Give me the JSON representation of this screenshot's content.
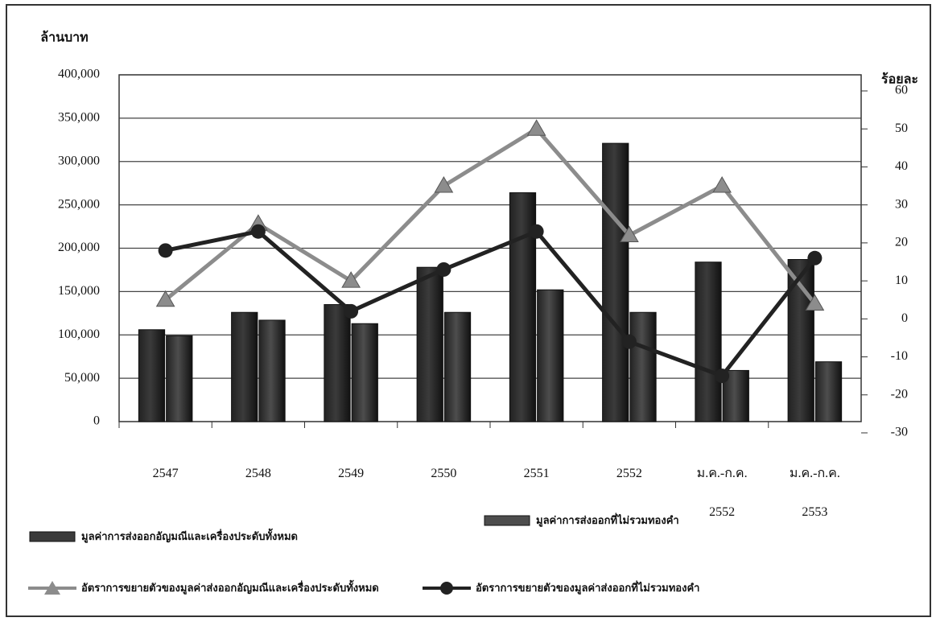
{
  "chart_data": {
    "type": "bar_line",
    "y_label": "ล้านบาท",
    "y2_label": "ร้อยละ",
    "categories": [
      "2547",
      "2548",
      "2549",
      "2550",
      "2551",
      "2552",
      "ม.ค.-ก.ค. 2552",
      "ม.ค.-ก.ค. 2553"
    ],
    "series": [
      {
        "name": "มูลค่าการส่งออกอัญมณีและเครื่องประดับทั้งหมด",
        "type": "bar",
        "color": "#3b3b3b",
        "values": [
          106000,
          126000,
          135000,
          178000,
          264000,
          321000,
          184000,
          187000
        ]
      },
      {
        "name": "มูลค่าการส่งออกที่ไม่รวมทองคำ",
        "type": "bar",
        "color": "#4d4d4d",
        "values": [
          99000,
          117000,
          113000,
          126000,
          152000,
          126000,
          59000,
          69000
        ]
      },
      {
        "name": "อัตราการขยายตัวของมูลค่าส่งออกอัญมณีและเครื่องประดับทั้งหมด",
        "type": "line",
        "marker": "triangle",
        "axis": "y2",
        "color": "#8c8c8c",
        "values": [
          5,
          25,
          10,
          35,
          50,
          22,
          35,
          4
        ]
      },
      {
        "name": "อัตราการขยายตัวของมูลค่าส่งออกที่ไม่รวมทองคำ",
        "type": "line",
        "marker": "circle",
        "axis": "y2",
        "color": "#222222",
        "values": [
          18,
          23,
          2,
          13,
          23,
          -6,
          -15,
          16
        ]
      }
    ],
    "ylim": [
      0,
      400000
    ],
    "yticks": [
      0,
      {
        "value": 50000,
        "label": "50,000"
      },
      {
        "value": 100000,
        "label": "100,000"
      },
      {
        "value": 150000,
        "label": "150,000"
      },
      {
        "value": 200000,
        "label": "200,000"
      },
      {
        "value": 250000,
        "label": "250,000"
      },
      {
        "value": 300000,
        "label": "300,000"
      },
      {
        "value": 350000,
        "label": "350,000"
      },
      {
        "value": 400000,
        "label": "400,000"
      }
    ],
    "y2lim": [
      -30,
      60
    ],
    "y2ticks": [
      -30,
      -20,
      -10,
      0,
      10,
      20,
      30,
      40,
      50,
      60
    ],
    "grid": true
  }
}
